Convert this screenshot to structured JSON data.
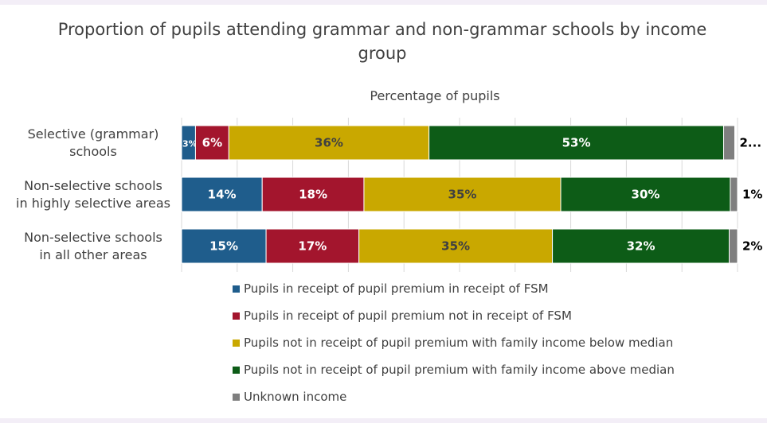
{
  "chart_data": {
    "type": "bar",
    "orientation": "horizontal",
    "stacked": "percent",
    "title": "Proportion of pupils attending grammar and non-grammar schools by income group",
    "title_lines": [
      "Proportion of pupils attending grammar and non-grammar schools by income",
      "group"
    ],
    "axis_title": "Percentage of pupils",
    "categories": [
      [
        "Selective (grammar)",
        "schools"
      ],
      [
        "Non-selective schools",
        "in highly selective areas"
      ],
      [
        "Non-selective schools",
        "in all other areas"
      ]
    ],
    "series": [
      {
        "name": "Pupils in receipt of pupil premium in receipt of FSM",
        "color": "#1f5d8c",
        "values": [
          2.5,
          14.5,
          15.2
        ],
        "labels": [
          "3%",
          "14%",
          "15%"
        ],
        "label_color": "#ffffff"
      },
      {
        "name": "Pupils in receipt of pupil premium not in receipt of FSM",
        "color": "#a3152d",
        "values": [
          6,
          18.3,
          16.7
        ],
        "labels": [
          "6%",
          "18%",
          "17%"
        ],
        "label_color": "#ffffff"
      },
      {
        "name": "Pupils not in receipt of pupil premium with family income below median",
        "color": "#c9a800",
        "values": [
          36,
          35.4,
          34.8
        ],
        "labels": [
          "36%",
          "35%",
          "35%"
        ],
        "label_color": "#404040"
      },
      {
        "name": "Pupils not in receipt of pupil premium with family income above median",
        "color": "#0d5c17",
        "values": [
          53,
          30.5,
          31.8
        ],
        "labels": [
          "53%",
          "30%",
          "32%"
        ],
        "label_color": "#ffffff"
      },
      {
        "name": "Unknown income",
        "color": "#7f7f7f",
        "values": [
          2,
          1.3,
          1.5
        ],
        "labels": [
          "2...",
          "1%",
          "2%"
        ],
        "label_color": "#000000",
        "label_outside": true
      }
    ],
    "xlim": [
      0,
      100
    ],
    "grid": true,
    "legend_position": "bottom"
  }
}
